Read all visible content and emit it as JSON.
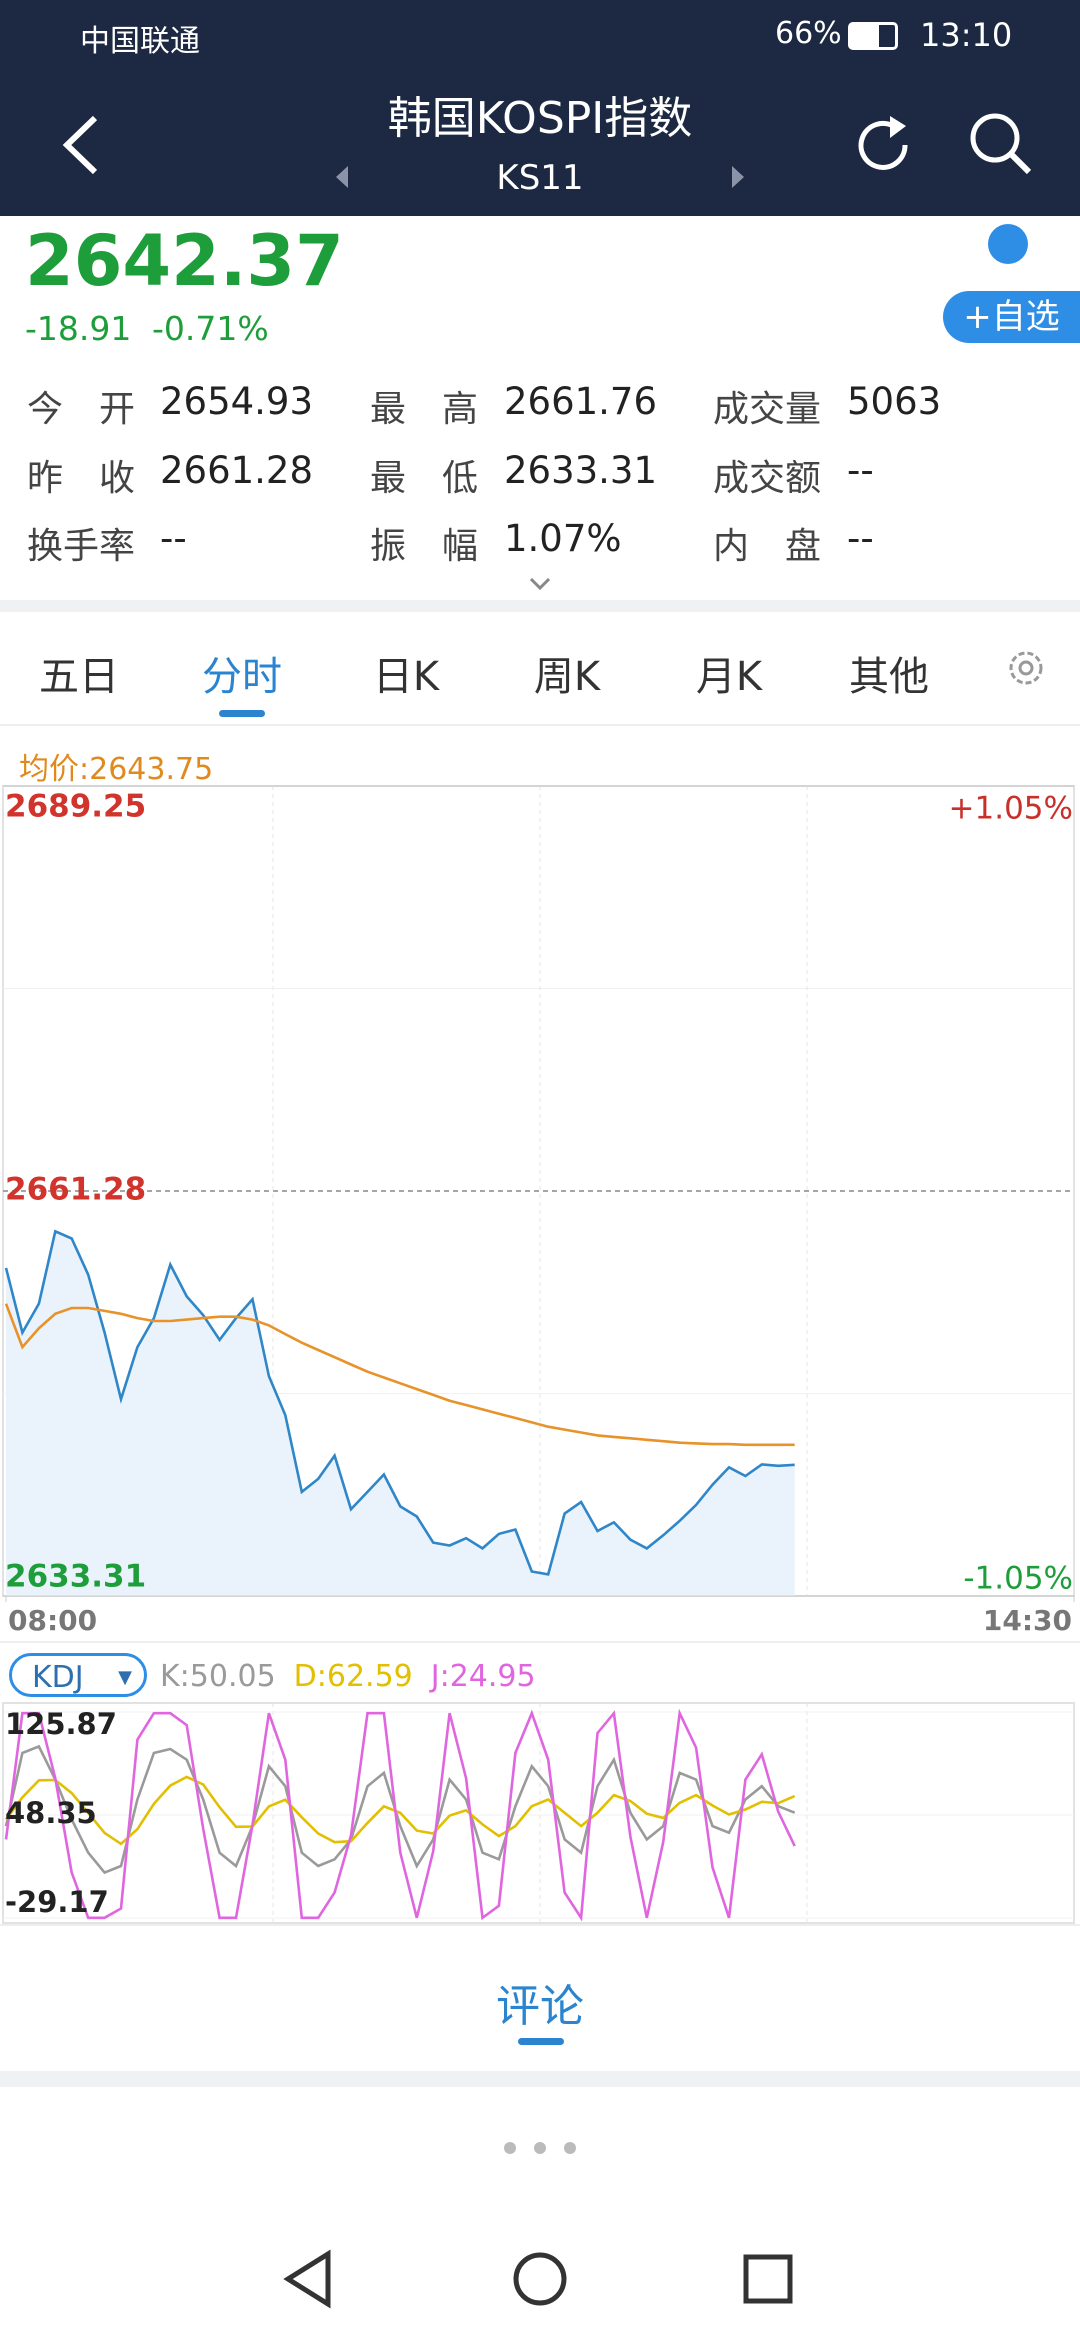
{
  "status_bar": {
    "carrier": "中国联通",
    "battery": "66%",
    "time": "13:10"
  },
  "header": {
    "title": "韩国KOSPI指数",
    "code": "KS11"
  },
  "quote": {
    "price": "2642.37",
    "change": "-18.91",
    "change_percent": "-0.71%",
    "watch_button": "+自选"
  },
  "stats": [
    {
      "label": "今　开",
      "value": "2654.93"
    },
    {
      "label": "最　高",
      "value": "2661.76"
    },
    {
      "label": "成交量",
      "value": "5063"
    },
    {
      "label": "昨　收",
      "value": "2661.28"
    },
    {
      "label": "最　低",
      "value": "2633.31"
    },
    {
      "label": "成交额",
      "value": "--"
    },
    {
      "label": "换手率",
      "value": "--"
    },
    {
      "label": "振　幅",
      "value": "1.07%"
    },
    {
      "label": "内　盘",
      "value": "--"
    }
  ],
  "tabs": {
    "items": [
      "五日",
      "分时",
      "日K",
      "周K",
      "月K",
      "其他"
    ],
    "active": 1
  },
  "avg_price": "均价:2643.75",
  "intraday_chart": {
    "type": "line",
    "x": [
      "08:00",
      "08:06",
      "08:12",
      "08:18",
      "08:24",
      "08:30",
      "08:36",
      "08:42",
      "08:48",
      "08:54",
      "09:00",
      "09:06",
      "09:12",
      "09:18",
      "09:24",
      "09:30",
      "09:36",
      "09:42",
      "09:48",
      "09:54",
      "10:00",
      "10:06",
      "10:12",
      "10:18",
      "10:24",
      "10:30",
      "10:36",
      "10:42",
      "10:48",
      "10:54",
      "11:00",
      "11:06",
      "11:12",
      "11:18",
      "11:24",
      "11:30",
      "11:36",
      "11:42",
      "11:48",
      "11:54",
      "12:00",
      "12:06",
      "12:12",
      "12:18",
      "12:24",
      "12:30",
      "12:36",
      "12:42",
      "12:48"
    ],
    "series": [
      {
        "color": "#2f86c8",
        "values": [
          2655.97,
          2651.5,
          2653.5,
          2658.5,
          2658.0,
          2655.5,
          2651.5,
          2646.9,
          2650.5,
          2652.5,
          2656.2,
          2654.0,
          2652.7,
          2651.0,
          2652.5,
          2653.8,
          2648.5,
          2645.8,
          2640.5,
          2641.4,
          2643.0,
          2639.3,
          2640.5,
          2641.7,
          2639.5,
          2638.8,
          2637.0,
          2636.8,
          2637.3,
          2636.6,
          2637.6,
          2637.9,
          2635.0,
          2634.8,
          2639.0,
          2639.8,
          2637.8,
          2638.4,
          2637.2,
          2636.6,
          2637.5,
          2638.5,
          2639.6,
          2641.0,
          2642.2,
          2641.6,
          2642.4,
          2642.3,
          2642.37
        ]
      },
      {
        "color": "#e8922a",
        "values": [
          2653.5,
          2650.5,
          2651.8,
          2652.8,
          2653.2,
          2653.2,
          2653.0,
          2652.8,
          2652.5,
          2652.3,
          2652.3,
          2652.4,
          2652.5,
          2652.6,
          2652.6,
          2652.4,
          2652.0,
          2651.4,
          2650.8,
          2650.3,
          2649.8,
          2649.3,
          2648.8,
          2648.4,
          2648.0,
          2647.6,
          2647.2,
          2646.8,
          2646.5,
          2646.2,
          2645.9,
          2645.6,
          2645.3,
          2645.0,
          2644.8,
          2644.6,
          2644.4,
          2644.3,
          2644.2,
          2644.1,
          2644.0,
          2643.9,
          2643.85,
          2643.8,
          2643.8,
          2643.75,
          2643.75,
          2643.75,
          2643.75
        ]
      }
    ],
    "xlim": [
      "08:00",
      "14:30"
    ],
    "xticks": [
      "08:00",
      "14:30"
    ],
    "ylim": [
      2633.31,
      2689.25
    ],
    "yticks": [
      2633.31,
      2661.28,
      2689.25
    ],
    "y2lim": [
      -1.05,
      1.05
    ],
    "y2ticks": [
      {
        "value": -1.05,
        "label": "-1.05%"
      },
      {
        "value": 1.05,
        "label": "+1.05%"
      }
    ]
  },
  "kdj_chart": {
    "type": "line",
    "indicator": "KDJ",
    "ylim": [
      -29.17,
      125.87
    ],
    "yticks": [
      -29.17,
      48.35,
      125.87
    ],
    "series": [
      {
        "name": "K:50.05",
        "color": "#9a9a9a",
        "values": [
          40,
          95,
          100,
          75,
          45,
          20,
          5,
          10,
          60,
          95,
          98,
          90,
          60,
          20,
          10,
          40,
          85,
          70,
          20,
          10,
          15,
          30,
          70,
          80,
          40,
          10,
          30,
          75,
          60,
          20,
          15,
          55,
          85,
          70,
          30,
          20,
          70,
          90,
          50,
          30,
          40,
          80,
          75,
          40,
          35,
          60,
          70,
          55,
          50.05
        ]
      },
      {
        "name": "D:62.59",
        "color": "#e2bf00",
        "values": [
          45,
          61.7,
          74.5,
          74.7,
          64.8,
          49.9,
          34.9,
          26.6,
          37.7,
          56.8,
          70.5,
          77.0,
          71.3,
          54.2,
          39.5,
          39.7,
          54.8,
          59.9,
          46.6,
          34.4,
          27.9,
          28.6,
          42.4,
          54.9,
          49.9,
          36.6,
          34.4,
          47.9,
          51.9,
          41.3,
          32.5,
          40.0,
          55.0,
          60.0,
          50.0,
          40.0,
          50.0,
          63.3,
          58.9,
          49.3,
          46.2,
          57.5,
          63.3,
          55.5,
          48.7,
          52.5,
          58.3,
          57.2,
          62.59
        ]
      },
      {
        "name": "J:24.95",
        "color": "#e066e0",
        "values": [
          30,
          125,
          125,
          76,
          5,
          -29,
          -29,
          -22,
          105,
          125,
          125,
          116,
          38,
          -29,
          -29,
          41,
          125,
          90,
          -29,
          -29,
          -10,
          33,
          125,
          125,
          20,
          -29,
          21,
          125,
          76,
          -29,
          -20,
          95,
          125,
          90,
          -10,
          -29,
          110,
          125,
          32,
          -29,
          28,
          125,
          99,
          9,
          -29,
          75,
          94,
          51,
          24.95
        ]
      }
    ]
  },
  "comments": {
    "tab": "评论"
  }
}
